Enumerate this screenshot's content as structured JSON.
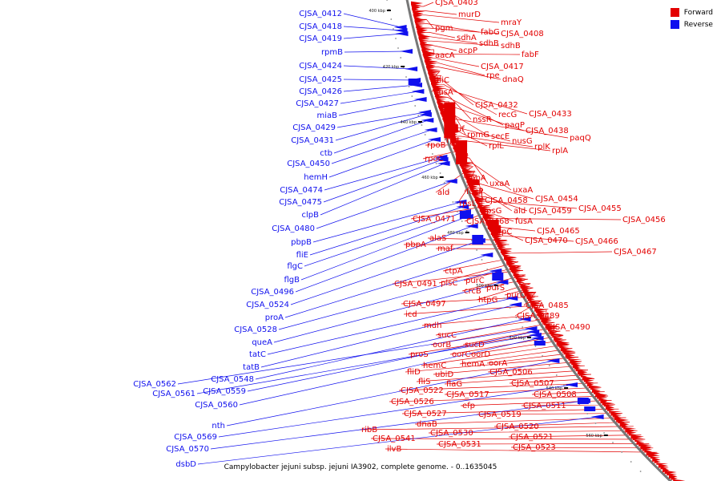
{
  "colors": {
    "forward": "#e30000",
    "reverse": "#1010ee",
    "backbone": "#777777"
  },
  "legend": [
    {
      "label": "Forward",
      "color": "#e30000"
    },
    {
      "label": "Reverse",
      "color": "#1010ee"
    }
  ],
  "caption": "Campylobacter jejuni subsp. jejuni IA3902, complete genome. - 0..1635045",
  "scale_labels": [
    "400 kbp",
    "420 kbp",
    "440 kbp",
    "460 kbp",
    "480 kbp",
    "500 kbp",
    "520 kbp",
    "540 kbp",
    "560 kbp"
  ],
  "forward_genes": [
    "CJSA_0403",
    "murD",
    "mraY",
    "pgm",
    "fabG",
    "CJSA_0408",
    "sdhA",
    "sdhB",
    "sdhB",
    "acpP",
    "aacA",
    "fabF",
    "CJSA_0417",
    "rpe",
    "dnaQ",
    "thiC",
    "nusA",
    "CJSA_0432",
    "recG",
    "CJSA_0433",
    "nssR",
    "paqP",
    "tuf",
    "CJSA_0438",
    "rpmG",
    "secE",
    "paqQ",
    "rplJ",
    "nusG",
    "rplL",
    "rplK",
    "rplA",
    "rpoB",
    "rpoC",
    "dapA",
    "uxaA",
    "uxaA",
    "ald",
    "fucP",
    "rpsL",
    "CJSA_0458",
    "CJSA_0454",
    "rpsG",
    "ald",
    "CJSA_0459",
    "CJSA_0455",
    "CJSA_0471",
    "CJSA_0468",
    "fusA",
    "CJSA_0456",
    "trpC",
    "CJSA_0465",
    "CJSA_0470",
    "CJSA_0466",
    "alaS",
    "pbpA",
    "maf",
    "CJSA_0467",
    "ctpA",
    "plsC",
    "purC",
    "CJSA_0491",
    "crcB",
    "purS",
    "htpG",
    "purQ",
    "CJSA_0485",
    "CJSA_0497",
    "CJSA_0489",
    "icd",
    "CJSA_0490",
    "mdh",
    "sucC",
    "oorB",
    "sucD",
    "proS",
    "oorC",
    "oorD",
    "hemC",
    "hemA",
    "oorA",
    "fliD",
    "ubiD",
    "CJSA_0506",
    "fliS",
    "flaG",
    "CJSA_0507",
    "CJSA_0522",
    "CJSA_0517",
    "CJSA_0508",
    "CJSA_0526",
    "efp",
    "CJSA_0511",
    "CJSA_0527",
    "CJSA_0519",
    "dnaB",
    "CJSA_0520",
    "ribB",
    "CJSA_0530",
    "CJSA_0521",
    "CJSA_0541",
    "CJSA_0531",
    "CJSA_0523",
    "ilvB"
  ],
  "reverse_genes": [
    "CJSA_0412",
    "CJSA_0418",
    "CJSA_0419",
    "rpmB",
    "CJSA_0424",
    "CJSA_0425",
    "CJSA_0426",
    "CJSA_0427",
    "miaB",
    "CJSA_0429",
    "CJSA_0431",
    "ctb",
    "CJSA_0450",
    "hemH",
    "CJSA_0474",
    "CJSA_0475",
    "clpB",
    "CJSA_0480",
    "pbpB",
    "fliE",
    "flgC",
    "flgB",
    "CJSA_0496",
    "CJSA_0524",
    "proA",
    "CJSA_0528",
    "queA",
    "tatC",
    "tatB",
    "CJSA_0548",
    "CJSA_0562",
    "CJSA_0559",
    "CJSA_0561",
    "CJSA_0560",
    "nth",
    "CJSA_0569",
    "CJSA_0570",
    "dsbD"
  ]
}
